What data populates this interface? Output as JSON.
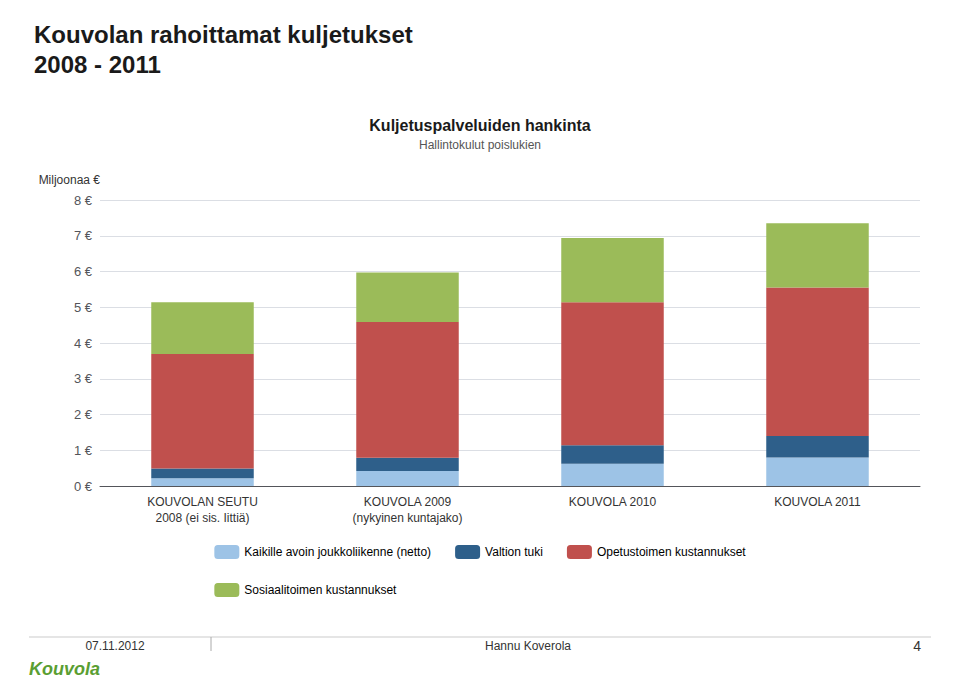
{
  "chart_data": {
    "type": "bar",
    "title": "Kouvolan rahoittamat kuljetukset\n2008 - 2011",
    "annotations": [
      "Kuljetuspalveluiden hankinta",
      "Hallintokulut poislukien",
      "07.11.2012",
      "Hannu Koverola",
      "4",
      "Kouvola"
    ],
    "ylabel": "Miljoonaa €",
    "categories": [
      "KOUVOLAN SEUTU\n2008 (ei sis. Iittiä)",
      "KOUVOLA 2009\n(nykyinen kuntajako)",
      "KOUVOLA 2010",
      "KOUVOLA 2011"
    ],
    "series": [
      {
        "name": "Kaikille avoin joukkoliikenne (netto)",
        "color": "#9dc3e6",
        "values": [
          0.22,
          0.42,
          0.62,
          0.8
        ]
      },
      {
        "name": "Valtion tuki",
        "color": "#2e5f8a",
        "values": [
          0.27,
          0.37,
          0.52,
          0.6
        ]
      },
      {
        "name": "Opetustoimen kustannukset",
        "color": "#c0504d",
        "values": [
          3.2,
          3.8,
          4.0,
          4.15
        ]
      },
      {
        "name": "Sosiaalitoimen kustannukset",
        "color": "#9bbb59",
        "values": [
          1.45,
          1.38,
          1.8,
          1.8
        ]
      }
    ],
    "stacked": true,
    "ylim": [
      0,
      8
    ],
    "yticks": [
      {
        "value": 0,
        "label": "0 €"
      },
      {
        "value": 1,
        "label": "1 €"
      },
      {
        "value": 2,
        "label": "2 €"
      },
      {
        "value": 3,
        "label": "3 €"
      },
      {
        "value": 4,
        "label": "4 €"
      },
      {
        "value": 5,
        "label": "5 €"
      },
      {
        "value": 6,
        "label": "6 €"
      },
      {
        "value": 7,
        "label": "7 €"
      },
      {
        "value": 8,
        "label": "8 €"
      }
    ],
    "grid": true,
    "legend": "bottom"
  }
}
